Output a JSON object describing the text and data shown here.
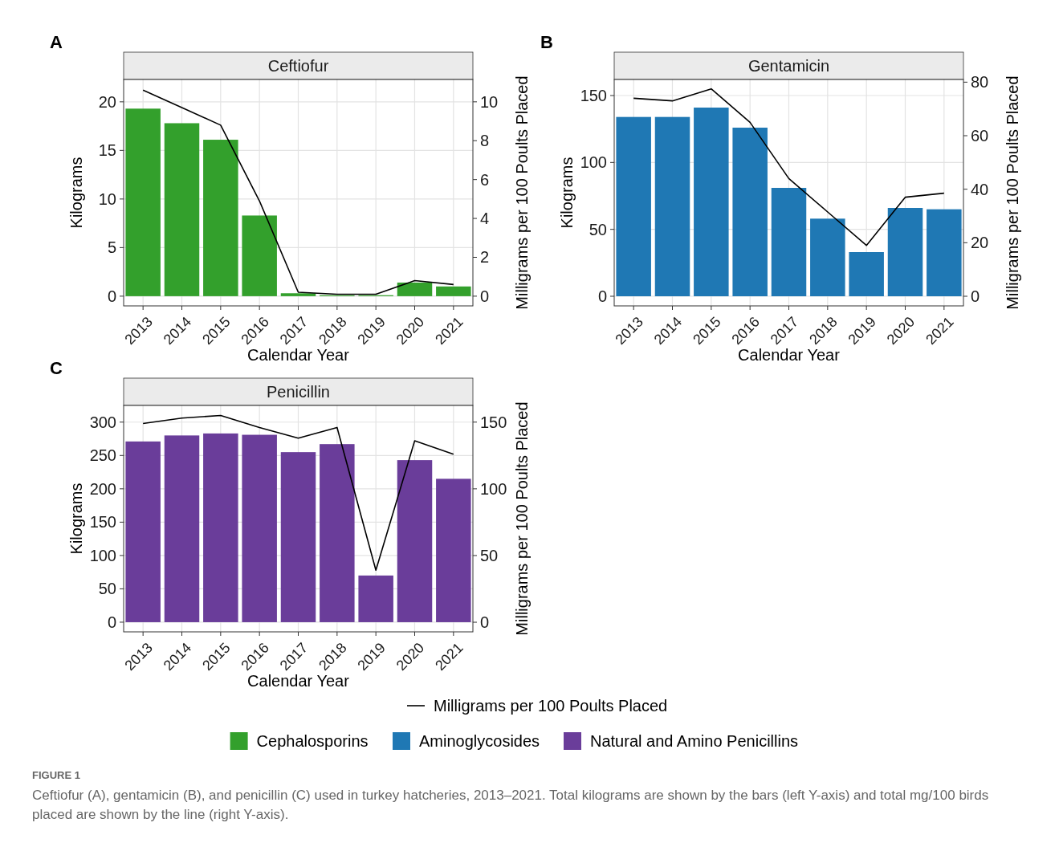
{
  "chart_data": [
    {
      "type": "bar",
      "title": "Ceftiofur",
      "xlabel": "Calendar Year",
      "ylabel": "Kilograms",
      "y2label": "Milligrams per 100 Poults Placed",
      "categories": [
        "2013",
        "2014",
        "2015",
        "2016",
        "2017",
        "2018",
        "2019",
        "2020",
        "2021"
      ],
      "series": [
        {
          "name": "Cephalosporins",
          "color": "#33a02c",
          "values": [
            19.3,
            17.8,
            16.1,
            8.3,
            0.3,
            0.1,
            0.1,
            1.4,
            1.0
          ]
        },
        {
          "name": "Milligrams per 100 Poults Placed",
          "type": "line",
          "axis": "y2",
          "color": "#000000",
          "values": [
            10.6,
            9.7,
            8.8,
            4.9,
            0.2,
            0.1,
            0.1,
            0.8,
            0.6
          ]
        }
      ],
      "ylim": [
        -1,
        22.3
      ],
      "yticks": [
        0,
        5,
        10,
        15,
        20
      ],
      "y2lim": [
        -0.5,
        11.15
      ],
      "y2ticks": [
        0,
        2,
        4,
        6,
        8,
        10
      ],
      "grid": true,
      "legend": "bottom",
      "annotations": [
        "A"
      ]
    },
    {
      "type": "bar",
      "title": "Gentamicin",
      "xlabel": "Calendar Year",
      "ylabel": "Kilograms",
      "y2label": "Milligrams per 100 Poults Placed",
      "categories": [
        "2013",
        "2014",
        "2015",
        "2016",
        "2017",
        "2018",
        "2019",
        "2020",
        "2021"
      ],
      "series": [
        {
          "name": "Aminoglycosides",
          "color": "#1f78b4",
          "values": [
            134,
            134,
            141,
            126,
            81,
            58,
            33,
            66,
            65
          ]
        },
        {
          "type": "line",
          "axis": "y2",
          "color": "#000000",
          "values": [
            74,
            73,
            77.5,
            65,
            44,
            31.5,
            19,
            37,
            38.5
          ]
        }
      ],
      "ylim": [
        -7.2,
        162
      ],
      "yticks": [
        0,
        50,
        100,
        150
      ],
      "y2lim": [
        -3.6,
        81
      ],
      "y2ticks": [
        0,
        20,
        40,
        60,
        80
      ],
      "grid": true,
      "legend": "bottom",
      "annotations": [
        "B"
      ]
    },
    {
      "type": "bar",
      "title": "Penicillin",
      "xlabel": "Calendar Year",
      "ylabel": "Kilograms",
      "y2label": "Milligrams per 100 Poults Placed",
      "categories": [
        "2013",
        "2014",
        "2015",
        "2016",
        "2017",
        "2018",
        "2019",
        "2020",
        "2021"
      ],
      "series": [
        {
          "name": "Natural and Amino Penicillins",
          "color": "#6a3d9a",
          "values": [
            271,
            280,
            283,
            281,
            255,
            267,
            70,
            243,
            215
          ]
        },
        {
          "type": "line",
          "axis": "y2",
          "color": "#000000",
          "values": [
            149,
            153,
            155,
            146,
            138,
            146,
            39,
            136,
            126
          ]
        }
      ],
      "ylim": [
        -14.5,
        325
      ],
      "yticks": [
        0,
        50,
        100,
        150,
        200,
        250,
        300
      ],
      "y2lim": [
        -7.2,
        162.5
      ],
      "y2ticks": [
        0,
        50,
        100,
        150
      ],
      "grid": true,
      "legend": "bottom",
      "annotations": [
        "C",
        "FIGURE 1",
        "Ceftiofur (A), gentamicin (B), and penicillin (C) used in turkey hatcheries, 2013–2021. Total kilograms are shown by the bars (left Y-axis) and total mg/100 birds placed are shown by the line (right Y-axis)."
      ]
    }
  ]
}
